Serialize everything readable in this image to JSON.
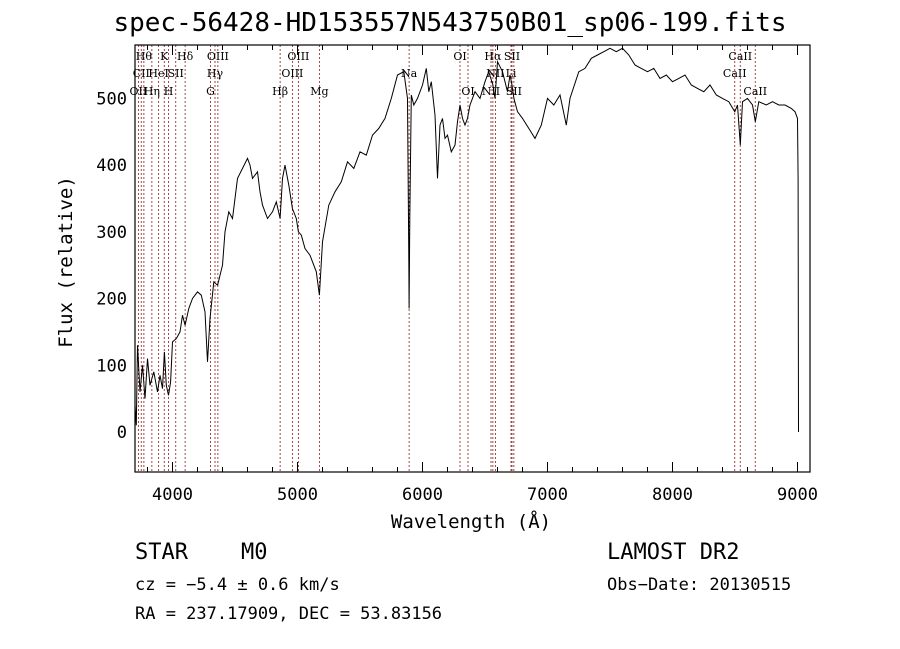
{
  "chart_data": {
    "type": "line",
    "title": "spec-56428-HD153557N543750B01_sp06-199.fits",
    "xlabel": "Wavelength (Å)",
    "ylabel": "Flux (relative)",
    "xlim": [
      3700,
      9100
    ],
    "ylim": [
      -60,
      580
    ],
    "xticks": [
      4000,
      5000,
      6000,
      7000,
      8000,
      9000
    ],
    "yticks": [
      0,
      100,
      200,
      300,
      400,
      500
    ],
    "grid": false,
    "series": [
      {
        "values": [
          [
            3700,
            40
          ],
          [
            3710,
            10
          ],
          [
            3720,
            130
          ],
          [
            3740,
            60
          ],
          [
            3760,
            100
          ],
          [
            3780,
            50
          ],
          [
            3800,
            110
          ],
          [
            3820,
            70
          ],
          [
            3850,
            90
          ],
          [
            3880,
            60
          ],
          [
            3900,
            85
          ],
          [
            3920,
            65
          ],
          [
            3935,
            120
          ],
          [
            3950,
            70
          ],
          [
            3968,
            55
          ],
          [
            3985,
            75
          ],
          [
            4000,
            135
          ],
          [
            4030,
            140
          ],
          [
            4060,
            150
          ],
          [
            4080,
            175
          ],
          [
            4101,
            160
          ],
          [
            4130,
            185
          ],
          [
            4160,
            200
          ],
          [
            4200,
            210
          ],
          [
            4230,
            205
          ],
          [
            4260,
            180
          ],
          [
            4280,
            105
          ],
          [
            4300,
            170
          ],
          [
            4330,
            225
          ],
          [
            4361,
            220
          ],
          [
            4400,
            250
          ],
          [
            4420,
            300
          ],
          [
            4450,
            330
          ],
          [
            4480,
            320
          ],
          [
            4520,
            380
          ],
          [
            4560,
            395
          ],
          [
            4600,
            410
          ],
          [
            4620,
            400
          ],
          [
            4640,
            380
          ],
          [
            4680,
            390
          ],
          [
            4700,
            360
          ],
          [
            4720,
            340
          ],
          [
            4760,
            320
          ],
          [
            4800,
            330
          ],
          [
            4830,
            345
          ],
          [
            4861,
            320
          ],
          [
            4880,
            380
          ],
          [
            4900,
            400
          ],
          [
            4930,
            370
          ],
          [
            4959,
            335
          ],
          [
            4990,
            320
          ],
          [
            5007,
            300
          ],
          [
            5030,
            295
          ],
          [
            5060,
            275
          ],
          [
            5100,
            265
          ],
          [
            5120,
            255
          ],
          [
            5150,
            240
          ],
          [
            5175,
            205
          ],
          [
            5200,
            285
          ],
          [
            5250,
            340
          ],
          [
            5300,
            360
          ],
          [
            5350,
            375
          ],
          [
            5400,
            405
          ],
          [
            5450,
            395
          ],
          [
            5500,
            420
          ],
          [
            5550,
            415
          ],
          [
            5600,
            445
          ],
          [
            5650,
            455
          ],
          [
            5700,
            470
          ],
          [
            5750,
            500
          ],
          [
            5800,
            535
          ],
          [
            5850,
            540
          ],
          [
            5880,
            500
          ],
          [
            5890,
            260
          ],
          [
            5893,
            185
          ],
          [
            5898,
            320
          ],
          [
            5910,
            505
          ],
          [
            5930,
            490
          ],
          [
            5960,
            500
          ],
          [
            6000,
            520
          ],
          [
            6030,
            545
          ],
          [
            6050,
            510
          ],
          [
            6070,
            525
          ],
          [
            6100,
            475
          ],
          [
            6120,
            380
          ],
          [
            6140,
            460
          ],
          [
            6160,
            470
          ],
          [
            6180,
            440
          ],
          [
            6200,
            445
          ],
          [
            6230,
            420
          ],
          [
            6260,
            430
          ],
          [
            6280,
            465
          ],
          [
            6300,
            490
          ],
          [
            6320,
            470
          ],
          [
            6340,
            460
          ],
          [
            6360,
            470
          ],
          [
            6380,
            490
          ],
          [
            6420,
            510
          ],
          [
            6460,
            500
          ],
          [
            6500,
            525
          ],
          [
            6530,
            540
          ],
          [
            6563,
            520
          ],
          [
            6580,
            500
          ],
          [
            6600,
            555
          ],
          [
            6640,
            540
          ],
          [
            6680,
            510
          ],
          [
            6700,
            535
          ],
          [
            6716,
            520
          ],
          [
            6731,
            500
          ],
          [
            6760,
            480
          ],
          [
            6800,
            470
          ],
          [
            6850,
            455
          ],
          [
            6900,
            440
          ],
          [
            6950,
            460
          ],
          [
            7000,
            500
          ],
          [
            7050,
            490
          ],
          [
            7100,
            505
          ],
          [
            7150,
            460
          ],
          [
            7180,
            500
          ],
          [
            7250,
            540
          ],
          [
            7300,
            545
          ],
          [
            7350,
            560
          ],
          [
            7400,
            565
          ],
          [
            7450,
            570
          ],
          [
            7500,
            575
          ],
          [
            7550,
            570
          ],
          [
            7600,
            575
          ],
          [
            7650,
            565
          ],
          [
            7700,
            550
          ],
          [
            7750,
            545
          ],
          [
            7800,
            540
          ],
          [
            7850,
            545
          ],
          [
            7900,
            530
          ],
          [
            7950,
            535
          ],
          [
            8000,
            525
          ],
          [
            8050,
            530
          ],
          [
            8100,
            535
          ],
          [
            8150,
            520
          ],
          [
            8200,
            515
          ],
          [
            8250,
            510
          ],
          [
            8300,
            520
          ],
          [
            8350,
            505
          ],
          [
            8400,
            500
          ],
          [
            8450,
            495
          ],
          [
            8498,
            480
          ],
          [
            8520,
            490
          ],
          [
            8542,
            430
          ],
          [
            8560,
            495
          ],
          [
            8600,
            500
          ],
          [
            8640,
            490
          ],
          [
            8662,
            465
          ],
          [
            8690,
            495
          ],
          [
            8750,
            490
          ],
          [
            8800,
            495
          ],
          [
            8850,
            490
          ],
          [
            8900,
            490
          ],
          [
            8950,
            485
          ],
          [
            8980,
            480
          ],
          [
            9000,
            470
          ],
          [
            9005,
            380
          ],
          [
            9008,
            0
          ]
        ]
      }
    ],
    "lines": [
      {
        "x": 3727,
        "label": "OII",
        "row": 3
      },
      {
        "x": 3750,
        "label": "CII",
        "row": 2
      },
      {
        "x": 3771,
        "label": "Hθ",
        "row": 1
      },
      {
        "x": 3835,
        "label": "Hη",
        "row": 3
      },
      {
        "x": 3889,
        "label": "HeI",
        "row": 2
      },
      {
        "x": 3934,
        "label": "K",
        "row": 1
      },
      {
        "x": 3968,
        "label": "H",
        "row": 3
      },
      {
        "x": 4026,
        "label": "SII",
        "row": 2
      },
      {
        "x": 4101,
        "label": "Hδ",
        "row": 1
      },
      {
        "x": 4304,
        "label": "G",
        "row": 3
      },
      {
        "x": 4340,
        "label": "Hγ",
        "row": 2
      },
      {
        "x": 4363,
        "label": "OIII",
        "row": 1
      },
      {
        "x": 4861,
        "label": "Hβ",
        "row": 3
      },
      {
        "x": 4959,
        "label": "OIII",
        "row": 2
      },
      {
        "x": 5007,
        "label": "OIII",
        "row": 1
      },
      {
        "x": 5175,
        "label": "Mg",
        "row": 3
      },
      {
        "x": 5893,
        "label": "Na",
        "row": 2
      },
      {
        "x": 6300,
        "label": "OI",
        "row": 1
      },
      {
        "x": 6364,
        "label": "OI",
        "row": 3
      },
      {
        "x": 6548,
        "label": "NII",
        "row": 3
      },
      {
        "x": 6563,
        "label": "Hα",
        "row": 1
      },
      {
        "x": 6583,
        "label": "NII",
        "row": 2
      },
      {
        "x": 6708,
        "label": "Li",
        "row": 2
      },
      {
        "x": 6716,
        "label": "SII",
        "row": 1
      },
      {
        "x": 6731,
        "label": "SII",
        "row": 3
      },
      {
        "x": 8498,
        "label": "CaII",
        "row": 2
      },
      {
        "x": 8542,
        "label": "CaII",
        "row": 1
      },
      {
        "x": 8662,
        "label": "CaII",
        "row": 3
      }
    ]
  },
  "info": {
    "class": "STAR",
    "subclass": "M0",
    "survey": "LAMOST DR2",
    "cz": "cz = −5.4 ± 0.6 km/s",
    "obs_date": "Obs−Date: 20130515",
    "coords": "RA = 237.17909, DEC =  53.83156"
  },
  "colors": {
    "spectrum": "#000000",
    "line_markers": "#8b1a1a",
    "background": "#ffffff"
  }
}
